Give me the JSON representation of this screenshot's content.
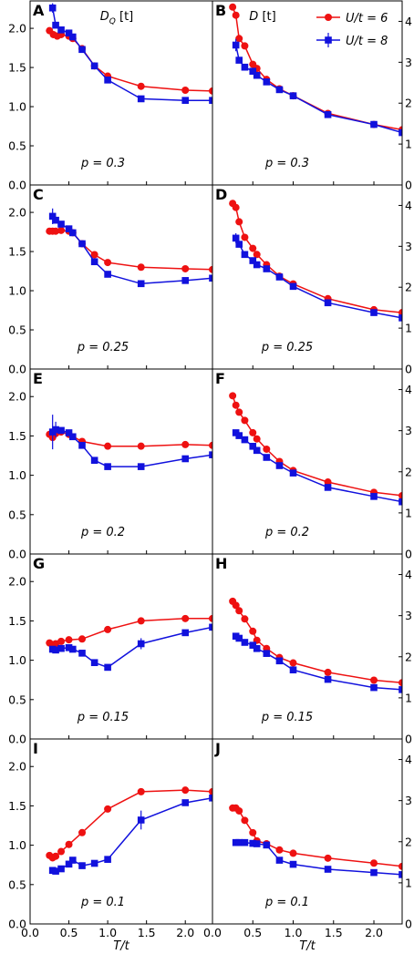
{
  "chart_data": {
    "type": "line",
    "xlabel": "T/t",
    "x_tick_labels": [
      "0.0",
      "0.5",
      "1.0",
      "1.5",
      "2.0"
    ],
    "xlim": [
      0.0,
      2.35
    ],
    "left_ylim": [
      0.0,
      2.35
    ],
    "left_y_tick_labels": [
      "0.0",
      "0.5",
      "1.0",
      "1.5",
      "2.0"
    ],
    "right_ylim": [
      0,
      4.5
    ],
    "right_y_tick_labels": [
      "0",
      "1",
      "2",
      "3",
      "4"
    ],
    "left_column_title": "D_Q [t]",
    "right_column_title": "D [t]",
    "legend": {
      "placement": "top-right of panel B",
      "entries": [
        "U/t = 6",
        "U/t = 8"
      ]
    },
    "colors": {
      "U6": "#ee1111",
      "U8": "#1111dd"
    },
    "panels": [
      {
        "letter": "A",
        "doping": "p = 0.3",
        "column": "left",
        "series": [
          {
            "name": "U/t = 6",
            "marker": "circle",
            "x": [
              0.25,
              0.3,
              0.35,
              0.4,
              0.5,
              0.55,
              0.67,
              0.83,
              1.0,
              1.43,
              2.0,
              2.35
            ],
            "y": [
              1.97,
              1.92,
              1.9,
              1.92,
              1.9,
              1.87,
              1.74,
              1.52,
              1.39,
              1.26,
              1.21,
              1.2
            ]
          },
          {
            "name": "U/t = 8",
            "marker": "square",
            "x": [
              0.29,
              0.33,
              0.4,
              0.5,
              0.55,
              0.67,
              0.83,
              1.0,
              1.43,
              2.0,
              2.35
            ],
            "y": [
              2.26,
              2.04,
              1.98,
              1.94,
              1.89,
              1.73,
              1.52,
              1.34,
              1.1,
              1.08,
              1.08
            ],
            "err": [
              0.06,
              0,
              0,
              0,
              0,
              0,
              0,
              0,
              0,
              0,
              0
            ]
          }
        ]
      },
      {
        "letter": "B",
        "doping": "p = 0.3",
        "column": "right",
        "series": [
          {
            "name": "U/t = 6",
            "marker": "circle",
            "x": [
              0.25,
              0.29,
              0.33,
              0.4,
              0.5,
              0.55,
              0.67,
              0.83,
              1.0,
              1.43,
              2.0,
              2.35
            ],
            "y": [
              4.35,
              4.15,
              3.58,
              3.4,
              2.95,
              2.85,
              2.58,
              2.35,
              2.18,
              1.75,
              1.48,
              1.35
            ]
          },
          {
            "name": "U/t = 8",
            "marker": "square",
            "x": [
              0.29,
              0.33,
              0.4,
              0.5,
              0.55,
              0.67,
              0.83,
              1.0,
              1.43,
              2.0,
              2.35
            ],
            "y": [
              3.42,
              3.05,
              2.88,
              2.78,
              2.68,
              2.52,
              2.33,
              2.18,
              1.72,
              1.48,
              1.28
            ],
            "err": [
              0.15,
              0,
              0,
              0,
              0,
              0,
              0,
              0,
              0,
              0,
              0
            ]
          }
        ]
      },
      {
        "letter": "C",
        "doping": "p = 0.25",
        "column": "left",
        "series": [
          {
            "name": "U/t = 6",
            "marker": "circle",
            "x": [
              0.25,
              0.29,
              0.33,
              0.4,
              0.5,
              0.55,
              0.67,
              0.83,
              1.0,
              1.43,
              2.0,
              2.35
            ],
            "y": [
              1.76,
              1.76,
              1.76,
              1.77,
              1.76,
              1.74,
              1.6,
              1.46,
              1.36,
              1.3,
              1.28,
              1.27
            ]
          },
          {
            "name": "U/t = 8",
            "marker": "square",
            "x": [
              0.29,
              0.33,
              0.4,
              0.5,
              0.55,
              0.67,
              0.83,
              1.0,
              1.43,
              2.0,
              2.35
            ],
            "y": [
              1.95,
              1.9,
              1.85,
              1.79,
              1.74,
              1.6,
              1.37,
              1.21,
              1.09,
              1.13,
              1.16
            ],
            "err": [
              0.1,
              0,
              0,
              0,
              0,
              0,
              0,
              0,
              0,
              0,
              0
            ]
          }
        ]
      },
      {
        "letter": "D",
        "doping": "p = 0.25",
        "column": "right",
        "series": [
          {
            "name": "U/t = 6",
            "marker": "circle",
            "x": [
              0.25,
              0.29,
              0.33,
              0.4,
              0.5,
              0.55,
              0.67,
              0.83,
              1.0,
              1.43,
              2.0,
              2.35
            ],
            "y": [
              4.05,
              3.95,
              3.6,
              3.22,
              2.95,
              2.8,
              2.55,
              2.27,
              2.08,
              1.72,
              1.45,
              1.38
            ]
          },
          {
            "name": "U/t = 8",
            "marker": "square",
            "x": [
              0.29,
              0.33,
              0.4,
              0.5,
              0.55,
              0.67,
              0.83,
              1.0,
              1.43,
              2.0,
              2.35
            ],
            "y": [
              3.2,
              3.05,
              2.8,
              2.65,
              2.55,
              2.45,
              2.25,
              2.02,
              1.62,
              1.38,
              1.25
            ],
            "err": [
              0.12,
              0,
              0,
              0,
              0,
              0,
              0,
              0,
              0,
              0,
              0
            ]
          }
        ]
      },
      {
        "letter": "E",
        "doping": "p = 0.2",
        "column": "left",
        "series": [
          {
            "name": "U/t = 6",
            "marker": "circle",
            "x": [
              0.25,
              0.29,
              0.33,
              0.4,
              0.5,
              0.67,
              1.0,
              1.43,
              2.0,
              2.35
            ],
            "y": [
              1.52,
              1.48,
              1.53,
              1.55,
              1.52,
              1.43,
              1.37,
              1.37,
              1.39,
              1.38
            ]
          },
          {
            "name": "U/t = 8",
            "marker": "square",
            "x": [
              0.29,
              0.33,
              0.4,
              0.5,
              0.55,
              0.67,
              0.83,
              1.0,
              1.43,
              2.0,
              2.35
            ],
            "y": [
              1.55,
              1.58,
              1.57,
              1.54,
              1.49,
              1.38,
              1.19,
              1.11,
              1.11,
              1.21,
              1.26
            ],
            "err": [
              0.22,
              0.1,
              0,
              0,
              0,
              0,
              0,
              0,
              0,
              0,
              0
            ]
          }
        ]
      },
      {
        "letter": "F",
        "doping": "p = 0.2",
        "column": "right",
        "series": [
          {
            "name": "U/t = 6",
            "marker": "circle",
            "x": [
              0.25,
              0.29,
              0.33,
              0.4,
              0.5,
              0.55,
              0.67,
              0.83,
              1.0,
              1.43,
              2.0,
              2.35
            ],
            "y": [
              3.85,
              3.62,
              3.45,
              3.25,
              2.95,
              2.8,
              2.55,
              2.25,
              2.03,
              1.75,
              1.5,
              1.42
            ]
          },
          {
            "name": "U/t = 8",
            "marker": "square",
            "x": [
              0.29,
              0.33,
              0.4,
              0.5,
              0.55,
              0.67,
              0.83,
              1.0,
              1.43,
              2.0,
              2.35
            ],
            "y": [
              2.95,
              2.88,
              2.78,
              2.62,
              2.52,
              2.35,
              2.15,
              1.97,
              1.62,
              1.4,
              1.27
            ]
          }
        ]
      },
      {
        "letter": "G",
        "doping": "p = 0.15",
        "column": "left",
        "series": [
          {
            "name": "U/t = 6",
            "marker": "circle",
            "x": [
              0.25,
              0.29,
              0.33,
              0.4,
              0.5,
              0.67,
              1.0,
              1.43,
              2.0,
              2.35
            ],
            "y": [
              1.22,
              1.2,
              1.21,
              1.24,
              1.26,
              1.27,
              1.39,
              1.5,
              1.53,
              1.53
            ]
          },
          {
            "name": "U/t = 8",
            "marker": "square",
            "x": [
              0.29,
              0.33,
              0.4,
              0.5,
              0.55,
              0.67,
              0.83,
              1.0,
              1.43,
              2.0,
              2.35
            ],
            "y": [
              1.14,
              1.13,
              1.15,
              1.16,
              1.14,
              1.09,
              0.97,
              0.91,
              1.21,
              1.35,
              1.42
            ],
            "err": [
              0,
              0,
              0,
              0,
              0,
              0,
              0,
              0,
              0.07,
              0,
              0
            ]
          }
        ]
      },
      {
        "letter": "H",
        "doping": "p = 0.15",
        "column": "right",
        "series": [
          {
            "name": "U/t = 6",
            "marker": "circle",
            "x": [
              0.25,
              0.29,
              0.33,
              0.4,
              0.5,
              0.55,
              0.67,
              0.83,
              1.0,
              1.43,
              2.0,
              2.35
            ],
            "y": [
              3.35,
              3.25,
              3.12,
              2.92,
              2.62,
              2.4,
              2.2,
              1.98,
              1.85,
              1.62,
              1.43,
              1.37
            ]
          },
          {
            "name": "U/t = 8",
            "marker": "square",
            "x": [
              0.29,
              0.33,
              0.4,
              0.5,
              0.55,
              0.67,
              0.83,
              1.0,
              1.43,
              2.0,
              2.35
            ],
            "y": [
              2.5,
              2.45,
              2.35,
              2.28,
              2.2,
              2.08,
              1.9,
              1.68,
              1.45,
              1.25,
              1.2
            ]
          }
        ]
      },
      {
        "letter": "I",
        "doping": "p = 0.1",
        "column": "left",
        "series": [
          {
            "name": "U/t = 6",
            "marker": "circle",
            "x": [
              0.25,
              0.29,
              0.33,
              0.4,
              0.5,
              0.67,
              1.0,
              1.43,
              2.0,
              2.35
            ],
            "y": [
              0.87,
              0.84,
              0.86,
              0.92,
              1.01,
              1.16,
              1.46,
              1.68,
              1.7,
              1.68
            ]
          },
          {
            "name": "U/t = 8",
            "marker": "square",
            "x": [
              0.29,
              0.33,
              0.4,
              0.5,
              0.55,
              0.67,
              0.83,
              1.0,
              1.43,
              2.0,
              2.35
            ],
            "y": [
              0.68,
              0.67,
              0.7,
              0.76,
              0.81,
              0.74,
              0.77,
              0.82,
              1.32,
              1.54,
              1.6
            ],
            "err": [
              0,
              0,
              0,
              0,
              0,
              0,
              0,
              0,
              0.12,
              0,
              0
            ]
          }
        ]
      },
      {
        "letter": "J",
        "doping": "p = 0.1",
        "column": "right",
        "series": [
          {
            "name": "U/t = 6",
            "marker": "circle",
            "x": [
              0.25,
              0.29,
              0.33,
              0.4,
              0.5,
              0.55,
              0.67,
              0.83,
              1.0,
              1.43,
              2.0,
              2.35
            ],
            "y": [
              2.82,
              2.82,
              2.75,
              2.52,
              2.22,
              2.02,
              1.95,
              1.8,
              1.72,
              1.6,
              1.48,
              1.4
            ]
          },
          {
            "name": "U/t = 8",
            "marker": "square",
            "x": [
              0.29,
              0.33,
              0.4,
              0.5,
              0.55,
              0.67,
              0.83,
              1.0,
              1.43,
              2.0,
              2.35
            ],
            "y": [
              1.98,
              1.98,
              1.98,
              1.96,
              1.95,
              1.92,
              1.55,
              1.45,
              1.33,
              1.25,
              1.2
            ]
          }
        ]
      }
    ]
  }
}
